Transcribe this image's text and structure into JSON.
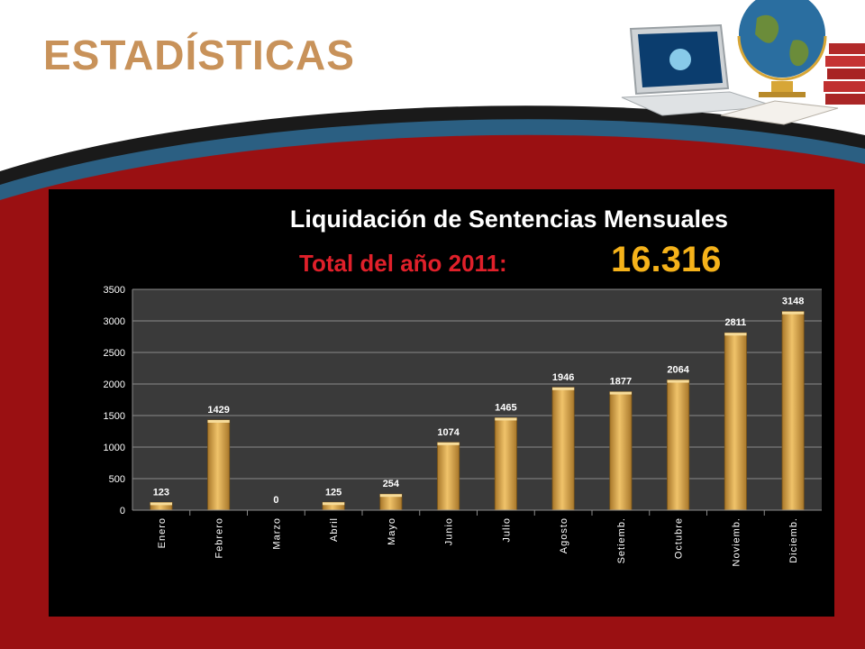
{
  "slide": {
    "title": "ESTADÍSTICAS"
  },
  "colors": {
    "title": "#c8925a",
    "banner_red": "#9a1012",
    "panel": "#000000",
    "plot_area": "#3a3a3a",
    "bar": "#d9a648",
    "total_label": "#e0202a",
    "total_value": "#f5b21a"
  },
  "decoration": {
    "icons": [
      "laptop-icon",
      "globe-icon",
      "books-icon"
    ]
  },
  "chart_data": {
    "type": "bar",
    "title": "Liquidación de Sentencias Mensuales",
    "subtitle_label": "Total  del año 2011:",
    "subtitle_value": "16.316",
    "categories": [
      "Enero",
      "Febrero",
      "Marzo",
      "Abril",
      "Mayo",
      "Junio",
      "Julio",
      "Agosto",
      "Setiemb.",
      "Octubre",
      "Noviemb.",
      "Diciemb."
    ],
    "values": [
      123,
      1429,
      0,
      125,
      254,
      1074,
      1465,
      1946,
      1877,
      2064,
      2811,
      3148
    ],
    "data_labels": [
      "123",
      "1429",
      "0",
      "125",
      "254",
      "1074",
      "1465",
      "1946",
      "1877",
      "2064",
      "2811",
      "3148"
    ],
    "ylim": [
      0,
      3500
    ],
    "yticks": [
      "0",
      "500",
      "1000",
      "1500",
      "2000",
      "2500",
      "3000",
      "3500"
    ],
    "grid": true,
    "legend": "none",
    "xlabel": "",
    "ylabel": ""
  }
}
